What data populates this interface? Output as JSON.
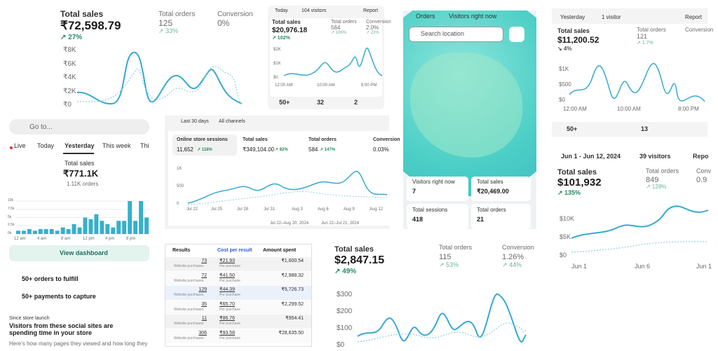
{
  "sales_card": {
    "title": "Total sales",
    "value": "₹72,598.79",
    "change": "↗ 27%",
    "orders_label": "Total orders",
    "orders": "125",
    "orders_change": "↗ 33%",
    "conversion_label": "Conversion",
    "conversion": "0%",
    "yticks": [
      "₹8K",
      "₹6K",
      "₹4K",
      "₹2K",
      "₹0"
    ]
  },
  "today_card": {
    "range": "Today",
    "visitors": "104 visitors",
    "report": "Report",
    "title": "Total sales",
    "value": "$20,976.18",
    "change": "↗ 102%",
    "orders_label": "Total orders",
    "orders": "564",
    "orders_change": "↗ 106%",
    "conversion_label": "Conversion",
    "conversion": "2.0%",
    "conversion_change": "↗ 23%",
    "yticks": [
      "$2K",
      "$1K",
      "$0"
    ],
    "xticks": [
      "12:00 AM",
      "10:00 AM",
      "8:00 PM"
    ],
    "tiles": [
      "50+",
      "32",
      "2"
    ]
  },
  "globe": {
    "legend": [
      "Orders",
      "Visitors right now"
    ],
    "search": "Search location",
    "cards": [
      {
        "label": "Visitors right now",
        "value": "7"
      },
      {
        "label": "Total sales",
        "value": "₹20,469.00"
      },
      {
        "label": "Total sessions",
        "value": "418"
      },
      {
        "label": "Total orders",
        "value": "21"
      }
    ]
  },
  "yesterday_card": {
    "range": "Yesterday",
    "visitors": "1 visitor",
    "report": "Report",
    "title": "Total sales",
    "value": "$11,200.52",
    "change": "↘ 4%",
    "orders_label": "Total orders",
    "orders": "121",
    "orders_change": "↗ 1.7%",
    "conversion_label": "Conversion",
    "yticks": [
      "$1K",
      "$500",
      "$0"
    ],
    "xticks": [
      "12:00 AM",
      "10:00 AM",
      "8:00 PM"
    ],
    "tiles": [
      "50+",
      "13"
    ]
  },
  "june_card": {
    "range": "Jun 1 - Jun 12, 2024",
    "visitors": "39 visitors",
    "report": "Repo",
    "title": "Total sales",
    "value": "$101,932",
    "change": "↗ 135%",
    "orders_label": "Total orders",
    "orders": "849",
    "orders_change": "↗ 128%",
    "conversion_label": "Conv",
    "conversion": "0.9",
    "yticks": [
      "$10K",
      "$5K",
      "$0"
    ],
    "xticks": [
      "Jun 1",
      "Jun 6",
      "Jun 1"
    ]
  },
  "mobile": {
    "search": "Go to...",
    "tabs": [
      "Live",
      "Today",
      "Yesterday",
      "This week",
      "Thi"
    ],
    "title": "Total sales",
    "value": "₹771.1K",
    "orders": "1.11K orders",
    "chart": {
      "type": "bar",
      "values": [
        1,
        1,
        1.5,
        1,
        1.5,
        1.5,
        1.5,
        1,
        2,
        1.5,
        3,
        2,
        5,
        4.5,
        6,
        4,
        3,
        2,
        4,
        4,
        10,
        4,
        10,
        5
      ],
      "ylim": [
        0,
        10
      ],
      "yticks": [
        {
          "value": 10,
          "label": "10k"
        },
        {
          "value": 7.5,
          "label": "7.5k"
        },
        {
          "value": 5,
          "label": "5k"
        },
        {
          "value": 2.5,
          "label": "2.5k"
        },
        {
          "value": 0,
          "label": "0k"
        }
      ],
      "xticks": [
        "12 am",
        "4 am",
        "8 am",
        "12 pm",
        "4 pm",
        "8 pm"
      ],
      "color": "#35b0cc"
    },
    "button": "View dashboard",
    "tasks": [
      "50+ orders to fulfill",
      "50+ payments to capture"
    ],
    "since": "Since store launch",
    "headline": "Visitors from these social sites are spending time in your store",
    "body": "Here's how many pages they viewed and how long they"
  },
  "sessions_card": {
    "range": "Last 30 days",
    "channels": "All channels",
    "metrics": [
      {
        "label": "Online store sessions",
        "value": "11,652",
        "change": "↗ 118%"
      },
      {
        "label": "Total sales",
        "value": "₹349,104.00",
        "change": "↗ 82%"
      },
      {
        "label": "Total orders",
        "value": "584",
        "change": "↗ 147%"
      },
      {
        "label": "Conversion",
        "value": "0.03%"
      }
    ],
    "yticks": [
      "1K",
      "500",
      "0"
    ],
    "xticks": [
      "Jul 22",
      "Jul 25",
      "Jul 28",
      "Jul 31",
      "Aug 3",
      "Aug 6",
      "Aug 9",
      "Aug 12"
    ],
    "legend": [
      "Jul 22–Aug 20, 2024",
      "Jun 22–Jul 21, 2024"
    ]
  },
  "table": {
    "headers": [
      "Results",
      "Cost per result",
      "Amount spent"
    ],
    "rows": [
      {
        "results": "73",
        "results_label": "Website purchases",
        "cost": "₹21.93",
        "cost_label": "Per purchase",
        "amount": "₹1,600.54"
      },
      {
        "results": "72",
        "results_label": "Website purchases",
        "cost": "₹41.50",
        "cost_label": "Per purchase",
        "amount": "₹2,988.32"
      },
      {
        "results": "129",
        "results_label": "Website purchases",
        "cost": "₹44.39",
        "cost_label": "Per purchase",
        "amount": "₹5,726.73"
      },
      {
        "results": "35",
        "results_label": "Website purchases",
        "cost": "₹65.70",
        "cost_label": "Per purchase",
        "amount": "₹2,299.52"
      },
      {
        "results": "11",
        "results_label": "Website purchases",
        "cost": "₹86.76",
        "cost_label": "Per purchase",
        "amount": "₹954.41"
      },
      {
        "results": "306",
        "results_label": "Website purchases",
        "cost": "₹93.58",
        "cost_label": "Per purchase",
        "amount": "₹28,635.50"
      }
    ]
  },
  "usd_card": {
    "title": "Total sales",
    "value": "$2,847.15",
    "change": "↗ 49%",
    "orders_label": "Total orders",
    "orders": "115",
    "orders_change": "↗ 53%",
    "conversion_label": "Conversion",
    "conversion": "1.26%",
    "conversion_change": "↗ 44%",
    "yticks": [
      "$300",
      "$200",
      "$100",
      "$0"
    ]
  }
}
